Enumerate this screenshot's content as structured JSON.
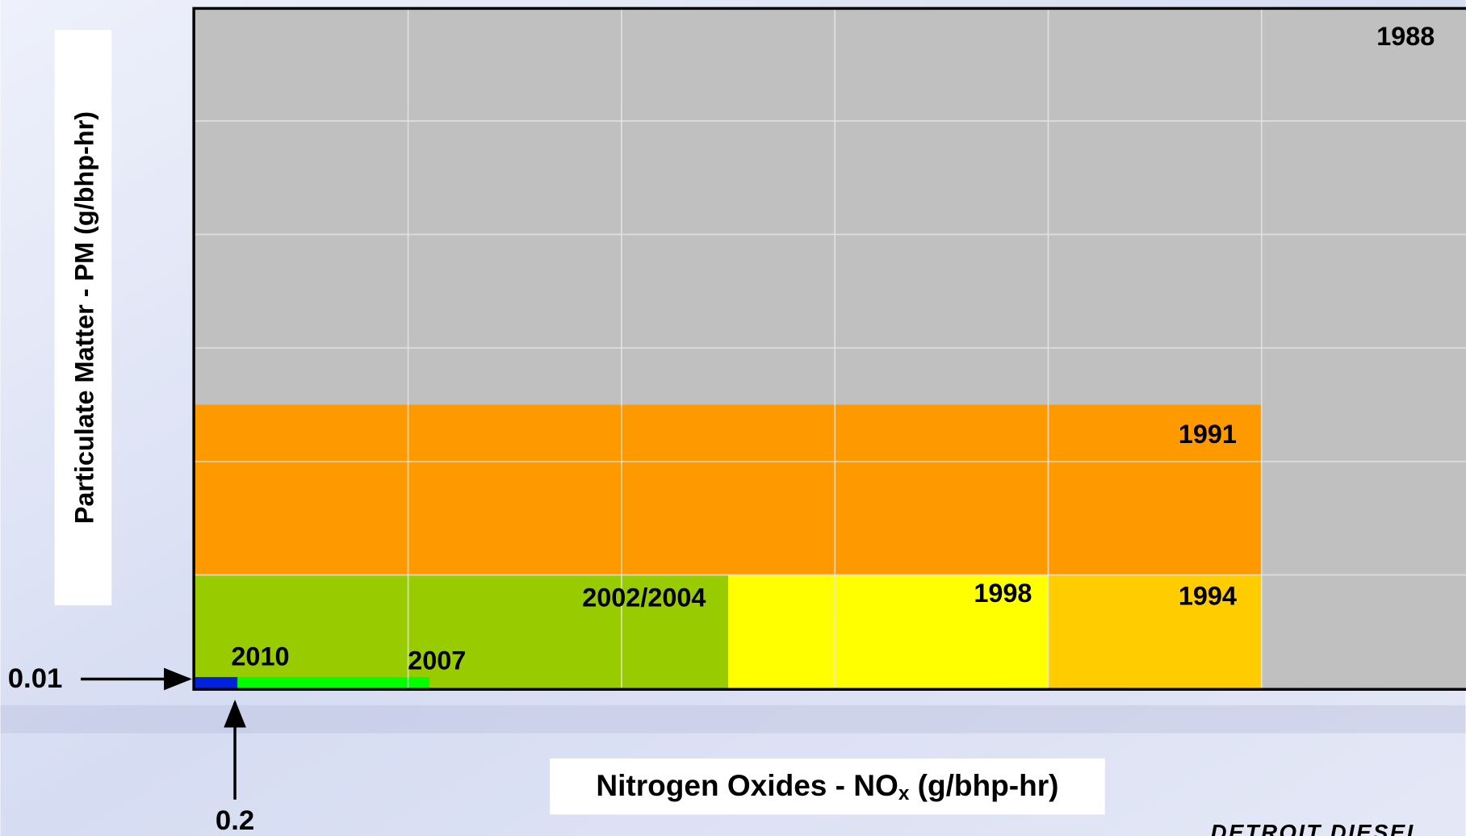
{
  "chart_data": {
    "type": "nested-rect",
    "y_label": "Particulate Matter - PM (g/bhp-hr)",
    "x_label": [
      "Nitrogen Oxides - NO",
      "x",
      " (g/bhp-hr)"
    ],
    "series": [
      {
        "name": "1988",
        "color": "#c0c0c0",
        "nox": 10.7,
        "pm": 0.6
      },
      {
        "name": "1991",
        "color": "#ff9900",
        "nox": 5,
        "pm": 0.25
      },
      {
        "name": "1994",
        "color": "#ffcc00",
        "nox": 5,
        "pm": 0.1
      },
      {
        "name": "1998",
        "color": "#ffff00",
        "nox": 4,
        "pm": 0.1
      },
      {
        "name": "2002/2004",
        "color": "#99cc00",
        "nox": 2.5,
        "pm": 0.1
      },
      {
        "name": "2007",
        "color": "#00ff00",
        "nox": 1.1,
        "pm": 0.01
      },
      {
        "name": "2010",
        "color": "#0022dd",
        "nox": 0.2,
        "pm": 0.01
      }
    ],
    "xlim": [
      0,
      6
    ],
    "ylim": [
      0,
      0.6
    ],
    "xticks": [
      1,
      2,
      3,
      4,
      5
    ],
    "yticks": [
      0.1,
      0.2,
      0.3,
      0.4,
      0.5
    ],
    "grid": true,
    "y_marker": 0.01,
    "x_marker": 0.2,
    "logo": "DETROIT DIESEL"
  }
}
